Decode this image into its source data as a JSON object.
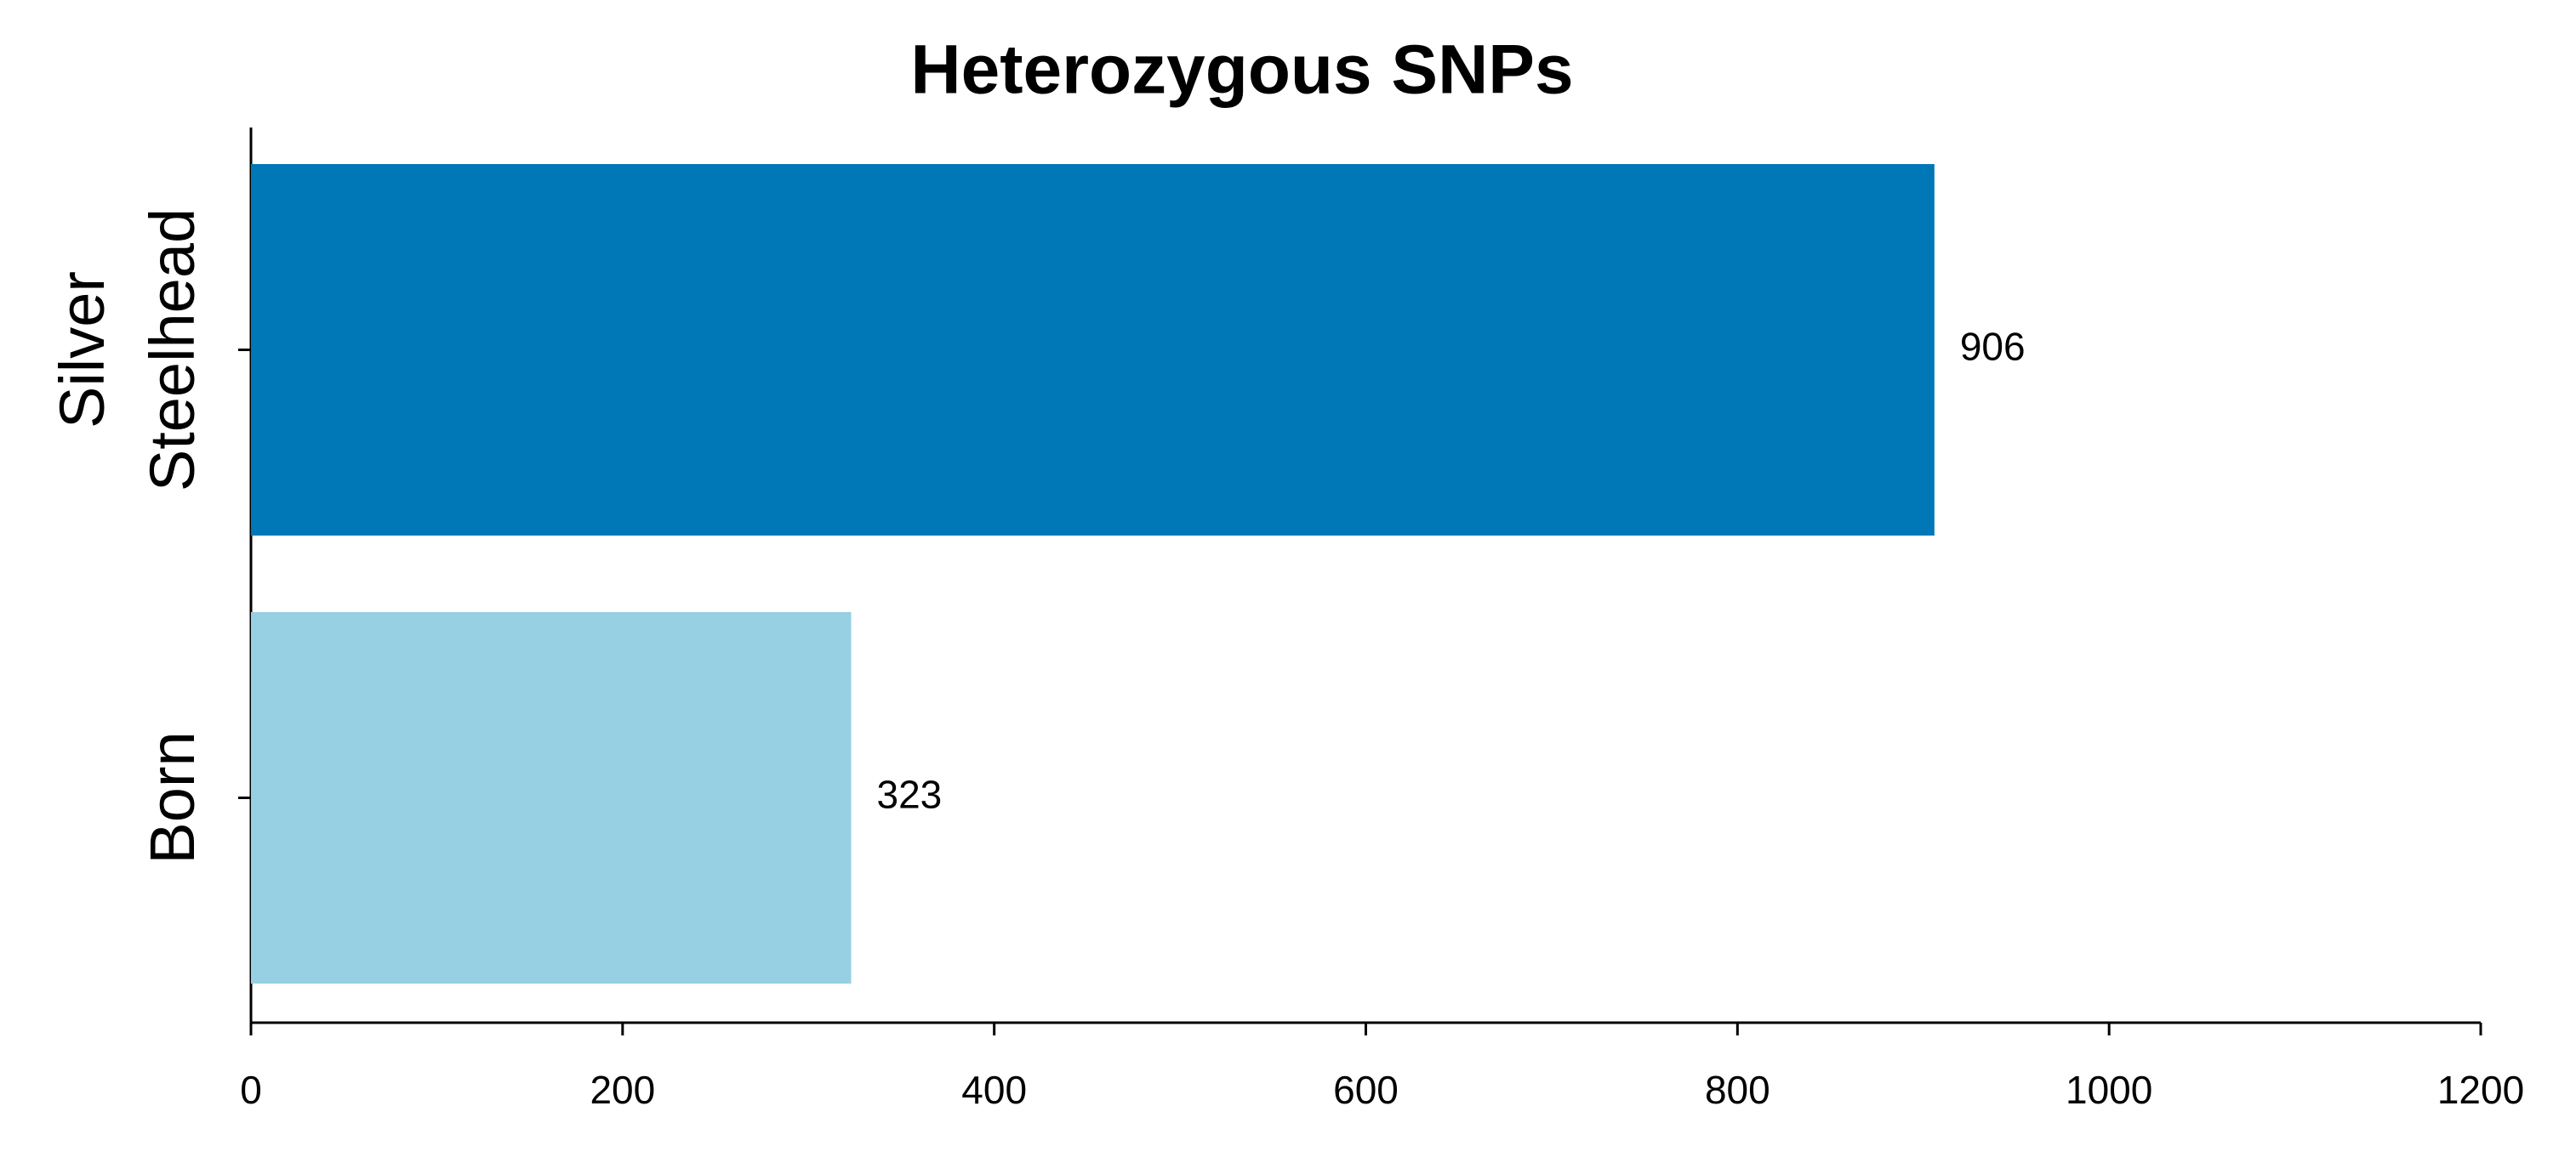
{
  "chart_data": {
    "type": "barh",
    "title": "Heterozygous SNPs",
    "categories": [
      "Silver Steelhead",
      "Born"
    ],
    "values": [
      906,
      323
    ],
    "colors": [
      "#0077b6",
      "#97cfe3"
    ],
    "xlim": [
      0,
      1200
    ],
    "xticks": [
      0,
      200,
      400,
      600,
      800,
      1000,
      1200
    ]
  }
}
